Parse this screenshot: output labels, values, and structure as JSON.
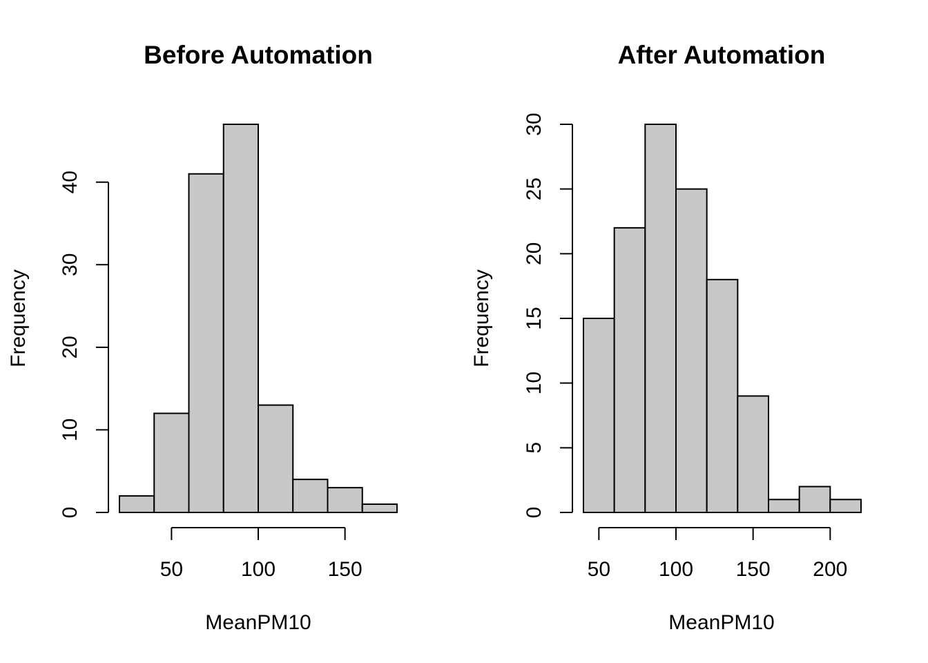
{
  "chart_data": [
    {
      "type": "bar",
      "subtype": "histogram",
      "title": "Before Automation",
      "xlabel": "MeanPM10",
      "ylabel": "Frequency",
      "bin_edges": [
        20,
        40,
        60,
        80,
        100,
        120,
        140,
        160,
        180
      ],
      "values": [
        2,
        12,
        41,
        47,
        13,
        4,
        3,
        1
      ],
      "x_ticks": [
        50,
        100,
        150
      ],
      "x_tick_labels": [
        "50",
        "100",
        "150"
      ],
      "y_ticks": [
        0,
        10,
        20,
        30,
        40
      ],
      "y_tick_labels": [
        "0",
        "10",
        "20",
        "30",
        "40"
      ],
      "ylim": [
        0,
        47
      ],
      "bar_color": "#c8c8c8",
      "grid": false,
      "legend": "none"
    },
    {
      "type": "bar",
      "subtype": "histogram",
      "title": "After Automation",
      "xlabel": "MeanPM10",
      "ylabel": "Frequency",
      "bin_edges": [
        40,
        60,
        80,
        100,
        120,
        140,
        160,
        180,
        200,
        220
      ],
      "values": [
        15,
        22,
        30,
        25,
        18,
        9,
        1,
        2,
        1
      ],
      "x_ticks": [
        50,
        100,
        150,
        200
      ],
      "x_tick_labels": [
        "50",
        "100",
        "150",
        "200"
      ],
      "y_ticks": [
        0,
        5,
        10,
        15,
        20,
        25,
        30
      ],
      "y_tick_labels": [
        "0",
        "5",
        "10",
        "15",
        "20",
        "25",
        "30"
      ],
      "ylim": [
        0,
        30
      ],
      "bar_color": "#c8c8c8",
      "grid": false,
      "legend": "none"
    }
  ]
}
